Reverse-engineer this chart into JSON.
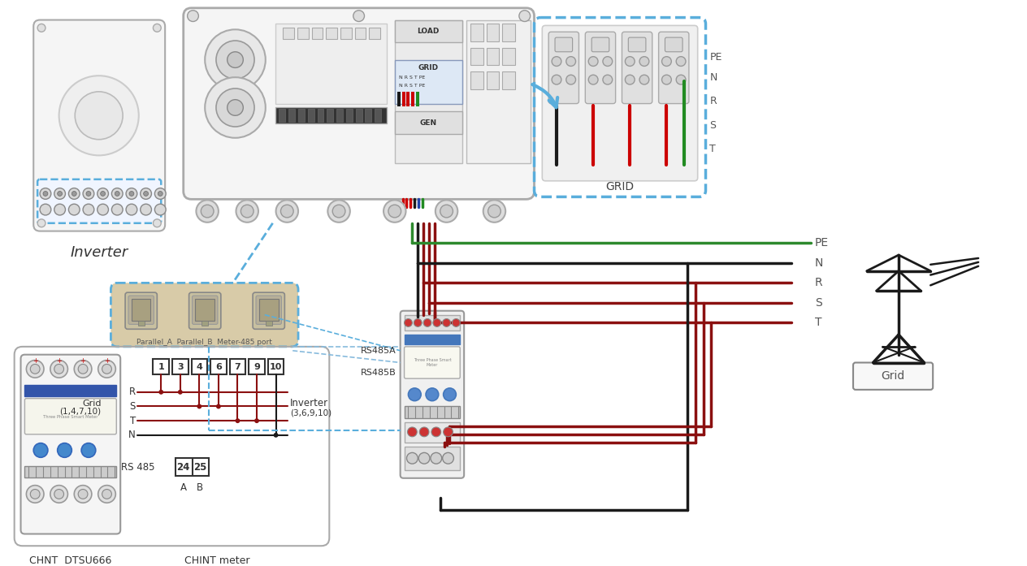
{
  "bg_color": "#ffffff",
  "wire_green": "#2d8a2d",
  "wire_black": "#1a1a1a",
  "wire_red": "#8B1010",
  "wire_blue_light": "#7ab8d4",
  "wire_blue": "#3a7aaa",
  "wire_dark_blue": "#2244aa",
  "dash_blue": "#5aaedc",
  "gray_box": "#e8e8e8",
  "gray_med": "#cccccc",
  "gray_dark": "#999999",
  "gray_light": "#f2f2f2",
  "tan_box": "#d4c8a8",
  "labels": {
    "inverter": "Inverter",
    "grid": "Grid",
    "chnt": "CHNT  DTSU666",
    "chint_meter": "CHINT meter",
    "rs485a": "RS485A",
    "rs485b": "RS485B",
    "parallel": "Parallel_A  Parallel_B  Meter-485 port",
    "grid_label": "GRID",
    "pe": "PE",
    "n": "N",
    "r_lbl": "R",
    "s_lbl": "S",
    "t_lbl": "T",
    "load": "LOAD",
    "gen": "GEN",
    "grid_short": "Grid",
    "grid_conn": "Grid",
    "grid_pins": "(1,4,7,10)",
    "inv_conn": "Inverter",
    "inv_pins": "(3,6,9,10)",
    "rs485": "RS 485",
    "ab_a": "A",
    "ab_b": "B",
    "terminals": [
      "1",
      "3",
      "4",
      "6",
      "7",
      "9",
      "10"
    ]
  }
}
